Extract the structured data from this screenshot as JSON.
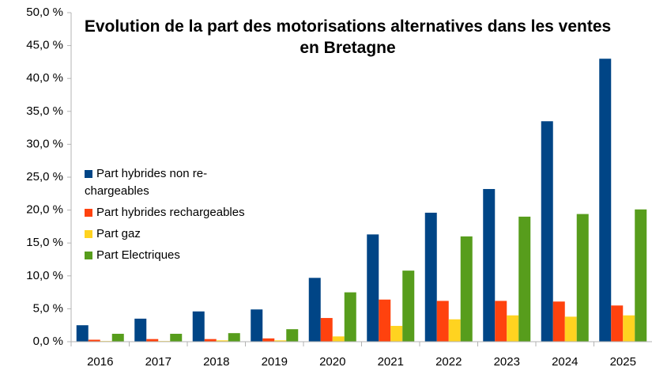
{
  "chart_data": {
    "type": "bar",
    "title": "Evolution de la part des motorisations alternatives dans les ventes en Bretagne",
    "categories": [
      "2016",
      "2017",
      "2018",
      "2019",
      "2020",
      "2021",
      "2022",
      "2023",
      "2024",
      "2025"
    ],
    "series": [
      {
        "name": "Part hybrides non re-chargeables",
        "color": "#004586",
        "values": [
          2.5,
          3.5,
          4.6,
          4.9,
          9.7,
          16.3,
          19.6,
          23.2,
          33.5,
          43.0
        ]
      },
      {
        "name": "Part hybrides rechargeables",
        "color": "#ff420e",
        "values": [
          0.3,
          0.4,
          0.4,
          0.5,
          3.6,
          6.4,
          6.2,
          6.2,
          6.1,
          5.5
        ]
      },
      {
        "name": "Part gaz",
        "color": "#ffd320",
        "values": [
          0.1,
          0.1,
          0.2,
          0.2,
          0.8,
          2.4,
          3.4,
          4.0,
          3.8,
          4.0
        ]
      },
      {
        "name": "Part Electriques",
        "color": "#579d1c",
        "values": [
          1.2,
          1.2,
          1.3,
          1.9,
          7.5,
          10.8,
          16.0,
          19.0,
          19.4,
          20.1
        ]
      }
    ],
    "ylim": [
      0,
      50
    ],
    "yticks": [
      {
        "value": 0,
        "label": "0,0 %"
      },
      {
        "value": 5,
        "label": "5,0 %"
      },
      {
        "value": 10,
        "label": "10,0 %"
      },
      {
        "value": 15,
        "label": "15,0 %"
      },
      {
        "value": 20,
        "label": "20,0 %"
      },
      {
        "value": 25,
        "label": "25,0 %"
      },
      {
        "value": 30,
        "label": "30,0 %"
      },
      {
        "value": 35,
        "label": "35,0 %"
      },
      {
        "value": 40,
        "label": "40,0 %"
      },
      {
        "value": 45,
        "label": "45,0 %"
      },
      {
        "value": 50,
        "label": "50,0 %"
      }
    ],
    "grid": false,
    "legend": "left"
  }
}
